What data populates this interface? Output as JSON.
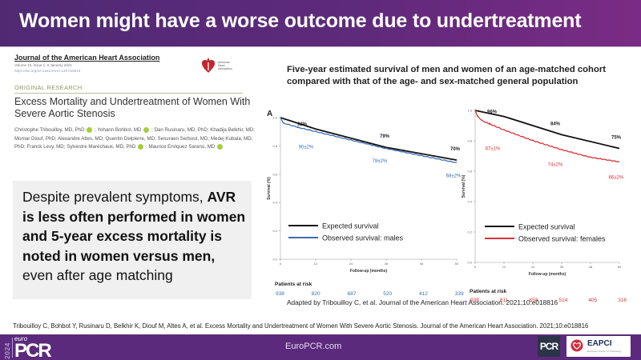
{
  "header": {
    "title": "Women might have a worse outcome due to undertreatment"
  },
  "journal": {
    "name": "Journal of the American Heart Association",
    "volume": "Volume 10, Issue 1, 5 January 2021",
    "doi": "https://doi.org/10.1161/JAHA.120.018816",
    "logo_text": [
      "American",
      "Heart",
      "Association"
    ],
    "section": "ORIGINAL RESEARCH",
    "article_title": "Excess Mortality and Undertreatment of Women With Severe Aortic Stenosis",
    "authors_line1": "Christophe Tribouilloy, MD, PhD",
    "authors_line2": "; Yohann Bohbot, MD",
    "authors_line3": "; Dan Rusinaru, MD, PhD; Khadija Belkhir, MD; Momar Diouf, PhD; Alexandre Altes, MD; Quentin Delpierre, MD; Sesuraen Serbout, MD; Medej Kubala, MD, PhD; Franck Levy, MD; Sylvestre Maréchaux, MD, PhD",
    "authors_line4": "; Maurice Enriquez Sarano, MD"
  },
  "summary": {
    "part1": "Despite prevalent symptoms, ",
    "part2_bold": "AVR is less often performed in women and 5-year excess mortality is noted in women versus men,",
    "part3": " even after age matching"
  },
  "figure": {
    "title": "Five-year estimated survival of men and women of an age-matched cohort compared with that of the age- and sex-matched general population",
    "adapted_note": "Adapted by Tribouilloy C, et al. Journal of the American Heart Association. 2021;10:e018816"
  },
  "chart_data": [
    {
      "type": "line",
      "panel_label": "A",
      "xlabel": "Follow-up (months)",
      "ylabel": "Survival (%)",
      "x_ticks": [
        0,
        12,
        24,
        36,
        48,
        60
      ],
      "y_ticks": [
        "0.0",
        "0.2",
        "0.4",
        "0.6",
        "0.8",
        "1.0"
      ],
      "xlim": [
        0,
        60
      ],
      "ylim": [
        0,
        1.0
      ],
      "legend_position": "bottom-left",
      "series": [
        {
          "name": "Expected survival",
          "color": "#111111",
          "x": [
            0,
            12,
            36,
            60
          ],
          "y": [
            1.0,
            0.92,
            0.79,
            0.7
          ]
        },
        {
          "name": "Observed survival: males",
          "color": "#3b6db3",
          "x": [
            0,
            1,
            6,
            12,
            24,
            36,
            48,
            60
          ],
          "y": [
            1.0,
            0.96,
            0.93,
            0.9,
            0.84,
            0.78,
            0.73,
            0.68
          ]
        }
      ],
      "annotations": [
        {
          "text": "92%",
          "x": 12,
          "y": 0.92,
          "series": "Expected survival"
        },
        {
          "text": "79%",
          "x": 36,
          "y": 0.79,
          "series": "Expected survival"
        },
        {
          "text": "70%",
          "x": 60,
          "y": 0.7,
          "series": "Expected survival"
        },
        {
          "text": "90±2%",
          "x": 12,
          "y": 0.9,
          "series": "Observed survival: males"
        },
        {
          "text": "78±2%",
          "x": 36,
          "y": 0.78,
          "series": "Observed survival: males"
        },
        {
          "text": "68±2%",
          "x": 60,
          "y": 0.68,
          "series": "Observed survival: males"
        }
      ],
      "risk_table": {
        "label": "Patients at risk",
        "color": "#3b6db3",
        "values": [
          938,
          820,
          687,
          520,
          412,
          339
        ]
      }
    },
    {
      "type": "line",
      "panel_label": "",
      "xlabel": "Follow-up (months)",
      "ylabel": "Survival (%)",
      "x_ticks": [
        0,
        12,
        24,
        36,
        48,
        60
      ],
      "y_ticks": [
        "0.0",
        "0.2",
        "0.4",
        "0.6",
        "0.8",
        "1.0"
      ],
      "xlim": [
        0,
        60
      ],
      "ylim": [
        0,
        1.0
      ],
      "legend_position": "bottom-left",
      "series": [
        {
          "name": "Expected survival",
          "color": "#111111",
          "x": [
            0,
            12,
            36,
            60
          ],
          "y": [
            1.0,
            0.96,
            0.84,
            0.75
          ]
        },
        {
          "name": "Observed survival: females",
          "color": "#d8323a",
          "x": [
            0,
            1,
            3,
            6,
            12,
            24,
            36,
            48,
            60
          ],
          "y": [
            1.0,
            0.96,
            0.93,
            0.91,
            0.87,
            0.8,
            0.74,
            0.69,
            0.66
          ]
        }
      ],
      "annotations": [
        {
          "text": "96%",
          "x": 12,
          "y": 0.96,
          "series": "Expected survival"
        },
        {
          "text": "84%",
          "x": 36,
          "y": 0.84,
          "series": "Expected survival"
        },
        {
          "text": "75%",
          "x": 60,
          "y": 0.75,
          "series": "Expected survival"
        },
        {
          "text": "87±1%",
          "x": 12,
          "y": 0.87,
          "series": "Observed survival: females"
        },
        {
          "text": "74±2%",
          "x": 36,
          "y": 0.74,
          "series": "Observed survival: females"
        },
        {
          "text": "66±2%",
          "x": 60,
          "y": 0.66,
          "series": "Observed survival: females"
        }
      ],
      "risk_table": {
        "label": "Patients at risk",
        "color": "#d8323a",
        "values": [
          938,
          811,
          658,
          514,
          405,
          316
        ]
      }
    }
  ],
  "citation": "Tribouilloy C, Bohbot Y, Rusinaru D, Belkhir K, Diouf M, Altes A, et al. Excess Mortality and Undertreatment of Women With Severe Aortic Stenosis. Journal of the American Heart Association. 2021;10:e018816",
  "footer": {
    "year": "2024",
    "logo_small": "euro",
    "logo_main": "PCR",
    "url": "EuroPCR.com",
    "pcr_badge": "PCR",
    "eapci_label": "EAPCI",
    "eapci_sub": "European Society of Cardiology"
  }
}
